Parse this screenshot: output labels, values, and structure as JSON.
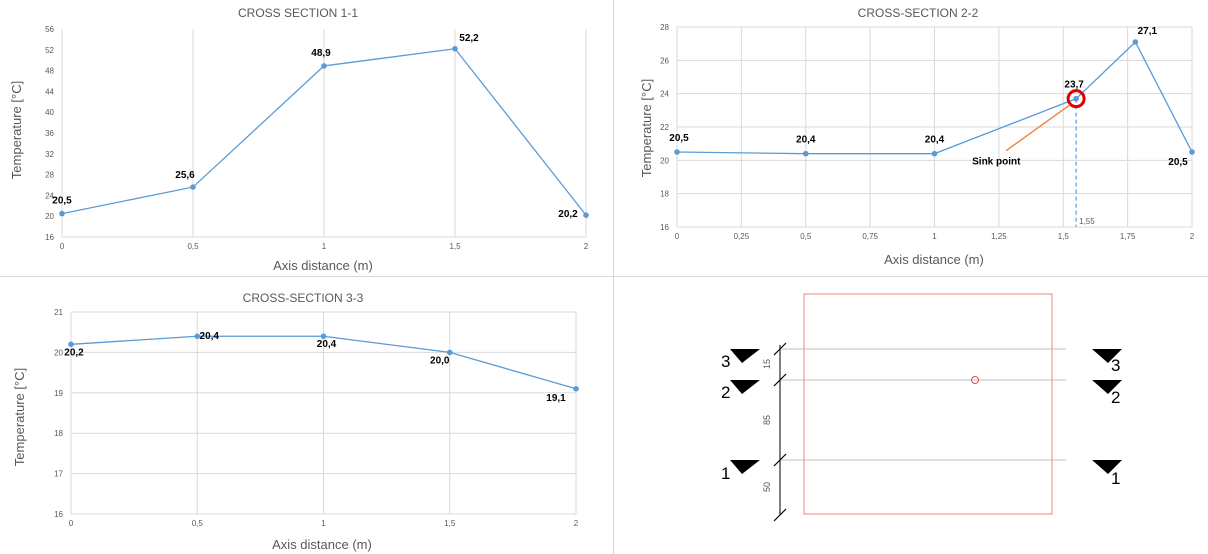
{
  "colors": {
    "series": "#5b9bd5",
    "grid": "#d9d9d9",
    "sink_marker": "#e00000",
    "sink_leader": "#ed7d31",
    "section_outline": "#f08080"
  },
  "chart_data": [
    {
      "id": "c1",
      "type": "line",
      "title": "CROSS SECTION 1-1",
      "xlabel": "Axis distance (m)",
      "ylabel": "Temperature [°C]",
      "xlim": [
        0,
        2
      ],
      "ylim": [
        16,
        56
      ],
      "x_ticks": [
        0,
        0.5,
        1,
        1.5,
        2
      ],
      "x_tick_labels": [
        "0",
        "0,5",
        "1",
        "1,5",
        "2"
      ],
      "y_ticks": [
        16,
        20,
        24,
        28,
        32,
        36,
        40,
        44,
        48,
        52,
        56
      ],
      "y_tick_labels": [
        "16",
        "20",
        "24",
        "28",
        "32",
        "36",
        "40",
        "44",
        "48",
        "52",
        "56"
      ],
      "grid": "vertical",
      "series": [
        {
          "x": [
            0,
            0.5,
            1,
            1.5,
            2
          ],
          "y": [
            20.5,
            25.6,
            48.9,
            52.2,
            20.2
          ],
          "labels": [
            "20,5",
            "25,6",
            "48,9",
            "52,2",
            "20,2"
          ]
        }
      ]
    },
    {
      "id": "c2",
      "type": "line",
      "title": "CROSS-SECTION 2-2",
      "xlabel": "Axis distance (m)",
      "ylabel": "Temperature [°C]",
      "xlim": [
        0,
        2
      ],
      "ylim": [
        16,
        28
      ],
      "x_ticks": [
        0,
        0.25,
        0.5,
        0.75,
        1,
        1.25,
        1.5,
        1.75,
        2
      ],
      "x_tick_labels": [
        "0",
        "0,25",
        "0,5",
        "0,75",
        "1",
        "1,25",
        "1,5",
        "1,75",
        "2"
      ],
      "y_ticks": [
        16,
        18,
        20,
        22,
        24,
        26,
        28
      ],
      "y_tick_labels": [
        "16",
        "18",
        "20",
        "22",
        "24",
        "26",
        "28"
      ],
      "grid": "both",
      "series": [
        {
          "x": [
            0,
            0.5,
            1,
            1.55,
            1.78,
            2
          ],
          "y": [
            20.5,
            20.4,
            20.4,
            23.7,
            27.1,
            20.5
          ],
          "labels": [
            "20,5",
            "20,4",
            "20,4",
            "23,7",
            "27,1",
            "20,5"
          ]
        }
      ],
      "annotations": [
        {
          "text": "Sink point",
          "x": 1.55,
          "y": 23.7
        },
        {
          "text": "1,55",
          "x": 1.55,
          "y": 16
        }
      ]
    },
    {
      "id": "c3",
      "type": "line",
      "title": "CROSS-SECTION 3-3",
      "xlabel": "Axis distance (m)",
      "ylabel": "Temperature [°C]",
      "xlim": [
        0,
        2
      ],
      "ylim": [
        16,
        21
      ],
      "x_ticks": [
        0,
        0.5,
        1,
        1.5,
        2
      ],
      "x_tick_labels": [
        "0",
        "0,5",
        "1",
        "1,5",
        "2"
      ],
      "y_ticks": [
        16,
        17,
        18,
        19,
        20,
        21
      ],
      "y_tick_labels": [
        "16",
        "17",
        "18",
        "19",
        "20",
        "21"
      ],
      "grid": "both",
      "series": [
        {
          "x": [
            0,
            0.5,
            1,
            1.5,
            2
          ],
          "y": [
            20.2,
            20.4,
            20.4,
            20.0,
            19.1
          ],
          "labels": [
            "20,2",
            "20,4",
            "20,4",
            "20,0",
            "19,1"
          ]
        }
      ]
    }
  ],
  "diagram": {
    "sections": [
      "3",
      "2",
      "1"
    ],
    "dimensions": [
      "15",
      "85",
      "50"
    ]
  }
}
